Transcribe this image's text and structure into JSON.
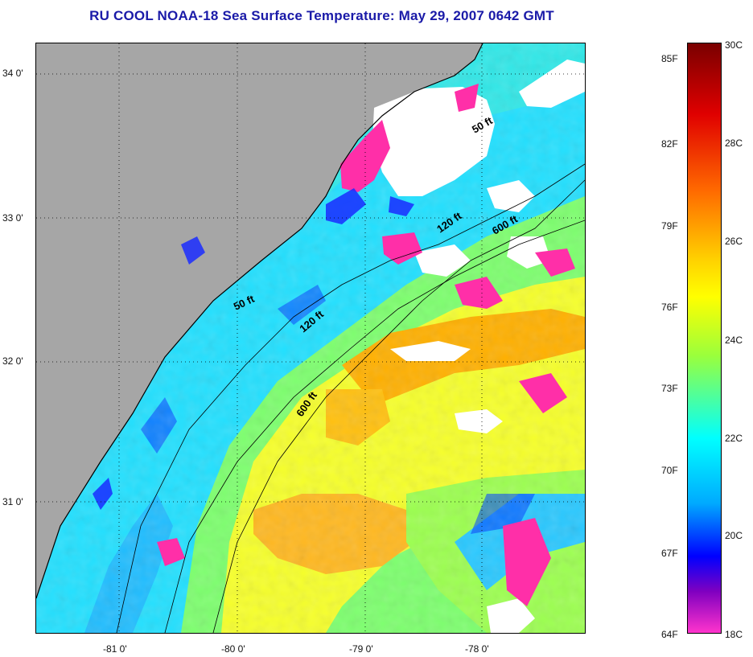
{
  "title": "RU COOL  NOAA-18  Sea Surface Temperature:  May 29, 2007 0642 GMT",
  "map": {
    "lat_labels": [
      "34 0'",
      "33 0'",
      "32 0'",
      "31 0'"
    ],
    "lon_labels": [
      "-81 0'",
      "-80 0'",
      "-79 0'",
      "-78 0'"
    ],
    "contours": [
      "50 ft",
      "50 ft",
      "120 ft",
      "120 ft",
      "600 ft",
      "600 ft"
    ],
    "colors": {
      "land": "#a6a6a6",
      "cloud": "#ffffff"
    }
  },
  "colorbar": {
    "fahrenheit": [
      "85F",
      "82F",
      "79F",
      "76F",
      "73F",
      "70F",
      "67F",
      "64F"
    ],
    "celsius": [
      "30C",
      "28C",
      "26C",
      "24C",
      "22C",
      "20C",
      "18C"
    ],
    "stops": [
      "#7a0000",
      "#e00000",
      "#ff6a00",
      "#ffd400",
      "#ffff00",
      "#9aff3c",
      "#00ffff",
      "#00aaff",
      "#0000ff",
      "#8000c0",
      "#ff33cc"
    ]
  }
}
